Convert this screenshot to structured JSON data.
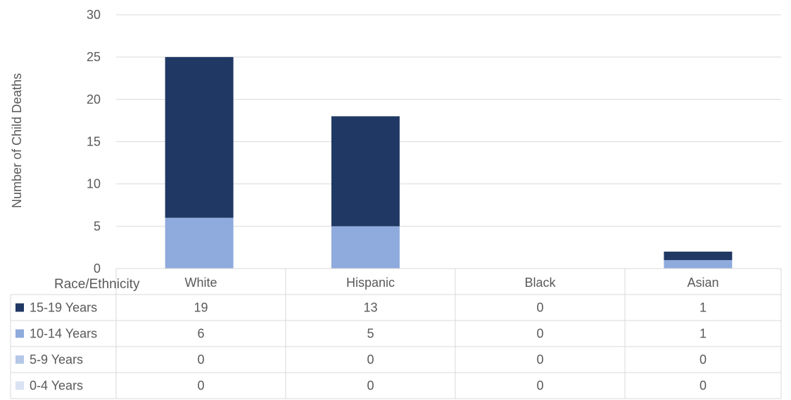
{
  "chart_data": {
    "type": "bar",
    "stacked": true,
    "ylabel": "Number of Child Deaths",
    "xlabel": "Race/Ethnicity",
    "ylim": [
      0,
      30
    ],
    "yticks": [
      0,
      5,
      10,
      15,
      20,
      25,
      30
    ],
    "grid": true,
    "categories": [
      "White",
      "Hispanic",
      "Black",
      "Asian"
    ],
    "series": [
      {
        "name": "15-19 Years",
        "color": "#203864",
        "values": [
          19,
          13,
          0,
          1
        ]
      },
      {
        "name": "10-14 Years",
        "color": "#8faadc",
        "values": [
          6,
          5,
          0,
          1
        ]
      },
      {
        "name": "5-9 Years",
        "color": "#b4c7e7",
        "values": [
          0,
          0,
          0,
          0
        ]
      },
      {
        "name": "0-4 Years",
        "color": "#dae3f3",
        "values": [
          0,
          0,
          0,
          0
        ]
      }
    ],
    "data_table": true
  }
}
